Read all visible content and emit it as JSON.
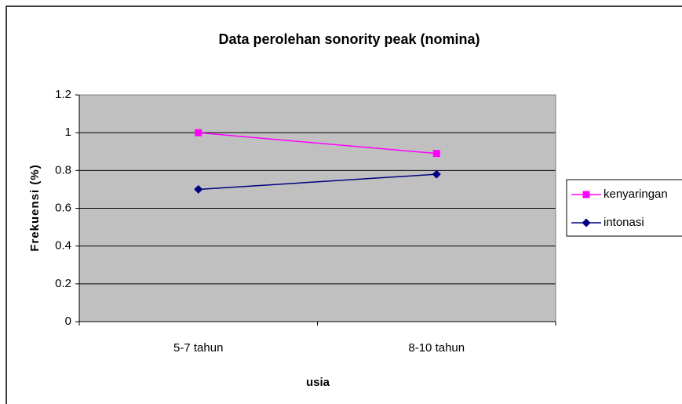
{
  "chart_data": {
    "type": "line",
    "title": "Data perolehan sonority peak (nomina)",
    "x_label": "usia",
    "y_label": "Frekuensi (%)",
    "categories": [
      "5-7 tahun",
      "8-10 tahun"
    ],
    "series": [
      {
        "name": "kenyaringan",
        "color": "#ff00ff",
        "marker": "square",
        "values": [
          1.0,
          0.89
        ]
      },
      {
        "name": "intonasi",
        "color": "#000080",
        "marker": "diamond",
        "values": [
          0.7,
          0.78
        ]
      }
    ],
    "ylim": [
      0,
      1.2
    ],
    "yticks": [
      0,
      0.2,
      0.4,
      0.6,
      0.8,
      1,
      1.2
    ],
    "grid": true,
    "legend": "right"
  }
}
